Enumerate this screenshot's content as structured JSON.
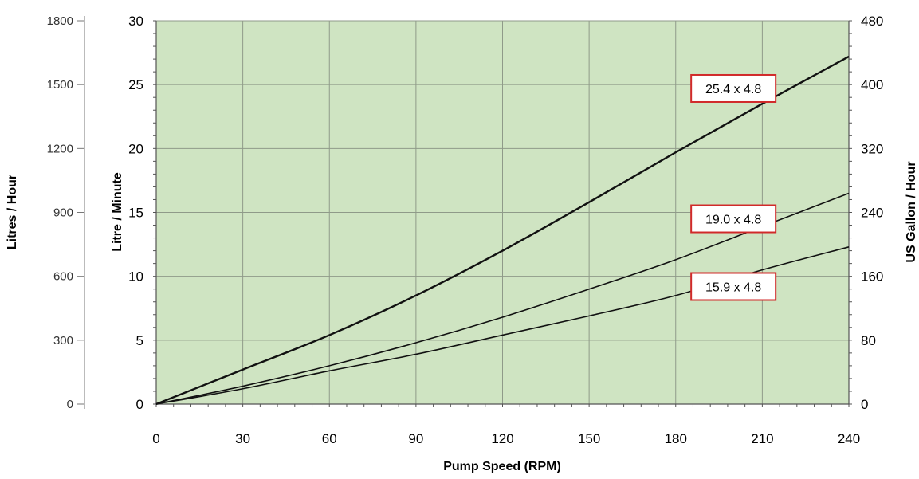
{
  "chart_data": {
    "type": "line",
    "xlabel": "Pump Speed (RPM)",
    "ylabel": "Litre / Minute",
    "ylabel_secondary_left": "Litres / Hour",
    "ylabel_right": "US Gallon / Hour",
    "xlim": [
      0,
      240
    ],
    "ylim": [
      0,
      30
    ],
    "ylim_secondary_left": [
      0,
      1800
    ],
    "ylim_right": [
      0,
      480
    ],
    "x_ticks": [
      0,
      30,
      60,
      90,
      120,
      150,
      180,
      210,
      240
    ],
    "y_ticks": [
      0,
      5,
      10,
      15,
      20,
      25,
      30
    ],
    "y_ticks_secondary_left": [
      0,
      300,
      600,
      900,
      1200,
      1500,
      1800
    ],
    "y_ticks_right": [
      0,
      80,
      160,
      240,
      320,
      400,
      480
    ],
    "grid": true,
    "plot_background": "#cfe4c2",
    "series": [
      {
        "name": "25.4 x 4.8",
        "x": [
          0,
          30,
          60,
          90,
          120,
          150,
          180,
          210,
          240
        ],
        "y": [
          0,
          2.7,
          5.4,
          8.5,
          12.0,
          15.8,
          19.7,
          23.5,
          27.2
        ]
      },
      {
        "name": "19.0 x 4.8",
        "x": [
          0,
          30,
          60,
          90,
          120,
          150,
          180,
          210,
          240
        ],
        "y": [
          0,
          1.4,
          3.0,
          4.8,
          6.8,
          9.0,
          11.3,
          13.9,
          16.5
        ]
      },
      {
        "name": "15.9 x 4.8",
        "x": [
          0,
          30,
          60,
          90,
          120,
          150,
          180,
          210,
          240
        ],
        "y": [
          0,
          1.2,
          2.6,
          3.9,
          5.4,
          6.9,
          8.5,
          10.5,
          12.3
        ]
      }
    ]
  }
}
